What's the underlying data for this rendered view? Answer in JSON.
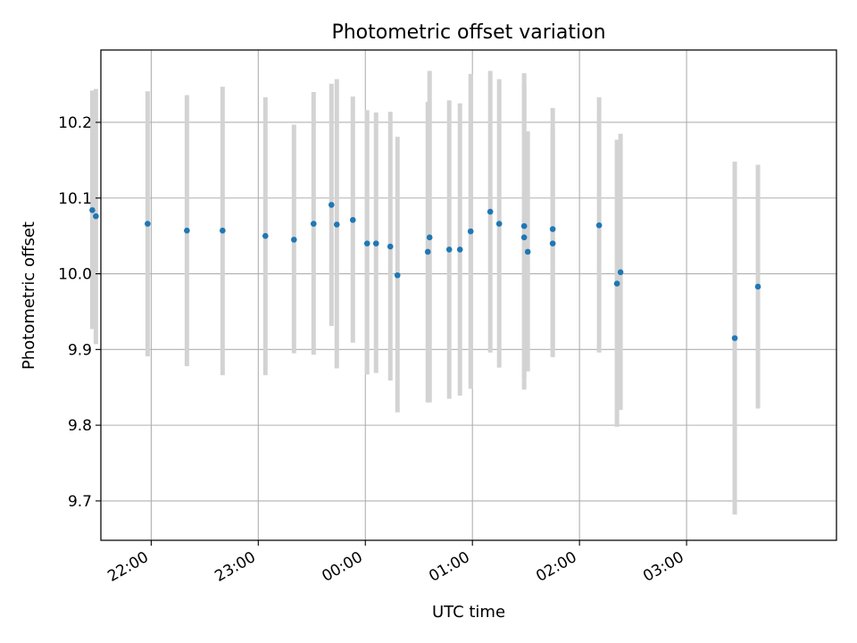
{
  "chart_data": {
    "type": "scatter",
    "title": "Photometric offset variation",
    "xlabel": "UTC time",
    "ylabel": "Photometric offset",
    "x_ticks": [
      "22:00",
      "23:00",
      "00:00",
      "01:00",
      "02:00",
      "03:00"
    ],
    "y_ticks": [
      "9.7",
      "9.8",
      "9.9",
      "10.0",
      "10.1",
      "10.2"
    ],
    "x_tick_values_hours": [
      22,
      23,
      24,
      25,
      26,
      27
    ],
    "y_tick_values": [
      9.7,
      9.8,
      9.9,
      10.0,
      10.1,
      10.2
    ],
    "xlim_hours": [
      21.53,
      28.4
    ],
    "ylim": [
      9.648,
      10.2955
    ],
    "grid": true,
    "colors": {
      "point": "#1f77b4",
      "errorbar": "#d3d3d3",
      "grid": "#b0b0b0"
    },
    "series": [
      {
        "points": [
          {
            "t": "21:27",
            "y": 10.084,
            "ylo": 9.927,
            "yhi": 10.242
          },
          {
            "t": "21:29",
            "y": 10.076,
            "ylo": 9.907,
            "yhi": 10.244
          },
          {
            "t": "21:58",
            "y": 10.066,
            "ylo": 9.891,
            "yhi": 10.241
          },
          {
            "t": "22:20",
            "y": 10.057,
            "ylo": 9.878,
            "yhi": 10.236
          },
          {
            "t": "22:40",
            "y": 10.057,
            "ylo": 9.866,
            "yhi": 10.247
          },
          {
            "t": "23:04",
            "y": 10.05,
            "ylo": 9.866,
            "yhi": 10.233
          },
          {
            "t": "23:20",
            "y": 10.045,
            "ylo": 9.895,
            "yhi": 10.197
          },
          {
            "t": "23:31",
            "y": 10.066,
            "ylo": 9.893,
            "yhi": 10.24
          },
          {
            "t": "23:41",
            "y": 10.091,
            "ylo": 9.931,
            "yhi": 10.251
          },
          {
            "t": "23:44",
            "y": 10.065,
            "ylo": 9.875,
            "yhi": 10.257
          },
          {
            "t": "23:53",
            "y": 10.071,
            "ylo": 9.909,
            "yhi": 10.234
          },
          {
            "t": "00:01",
            "y": 10.04,
            "ylo": 9.867,
            "yhi": 10.216
          },
          {
            "t": "00:06",
            "y": 10.04,
            "ylo": 9.869,
            "yhi": 10.213
          },
          {
            "t": "00:14",
            "y": 10.036,
            "ylo": 9.859,
            "yhi": 10.214
          },
          {
            "t": "00:18",
            "y": 9.998,
            "ylo": 9.817,
            "yhi": 10.181
          },
          {
            "t": "00:35",
            "y": 10.029,
            "ylo": 9.83,
            "yhi": 10.227
          },
          {
            "t": "00:36",
            "y": 10.048,
            "ylo": 9.83,
            "yhi": 10.268
          },
          {
            "t": "00:47",
            "y": 10.032,
            "ylo": 9.835,
            "yhi": 10.229
          },
          {
            "t": "00:53",
            "y": 10.032,
            "ylo": 9.839,
            "yhi": 10.225
          },
          {
            "t": "00:59",
            "y": 10.056,
            "ylo": 9.848,
            "yhi": 10.264
          },
          {
            "t": "01:10",
            "y": 10.082,
            "ylo": 9.896,
            "yhi": 10.268
          },
          {
            "t": "01:15",
            "y": 10.066,
            "ylo": 9.876,
            "yhi": 10.257
          },
          {
            "t": "01:29",
            "y": 10.063,
            "ylo": 9.862,
            "yhi": 10.265
          },
          {
            "t": "01:29",
            "y": 10.048,
            "ylo": 9.847,
            "yhi": 10.25
          },
          {
            "t": "01:31",
            "y": 10.029,
            "ylo": 9.871,
            "yhi": 10.188
          },
          {
            "t": "01:45",
            "y": 10.059,
            "ylo": 9.899,
            "yhi": 10.219
          },
          {
            "t": "01:45",
            "y": 10.04,
            "ylo": 9.89,
            "yhi": 10.19
          },
          {
            "t": "02:11",
            "y": 10.064,
            "ylo": 9.896,
            "yhi": 10.233
          },
          {
            "t": "02:21",
            "y": 9.987,
            "ylo": 9.798,
            "yhi": 10.177
          },
          {
            "t": "02:23",
            "y": 10.002,
            "ylo": 9.82,
            "yhi": 10.185
          },
          {
            "t": "03:27",
            "y": 9.915,
            "ylo": 9.682,
            "yhi": 10.148
          },
          {
            "t": "03:40",
            "y": 9.983,
            "ylo": 9.822,
            "yhi": 10.144
          }
        ]
      }
    ]
  }
}
